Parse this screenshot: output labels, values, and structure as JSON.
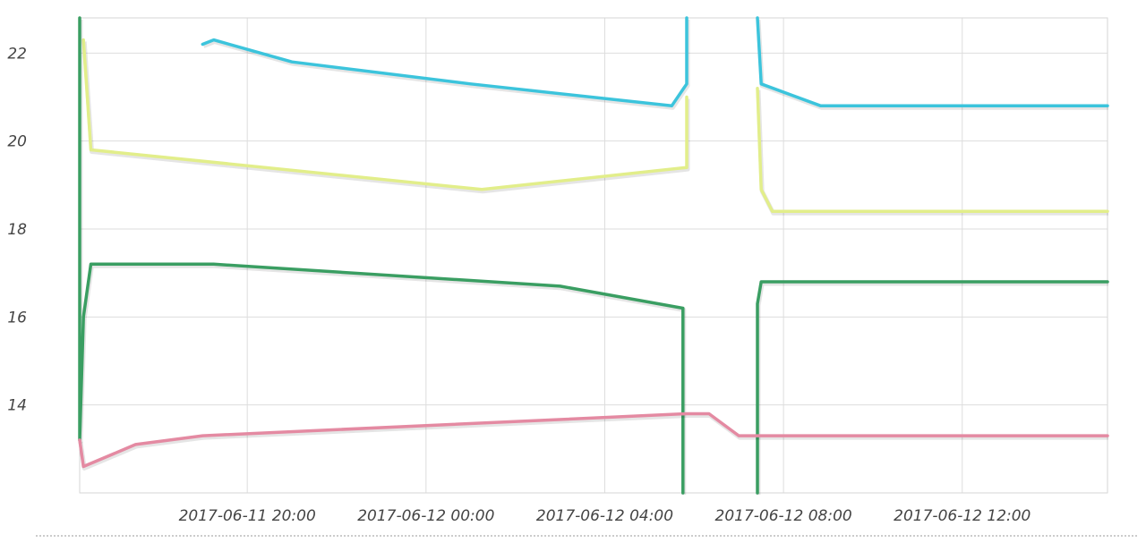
{
  "chart_data": {
    "type": "line",
    "x_axis_type": "datetime",
    "xlim": [
      "2017-06-11 16:15",
      "2017-06-12 15:15"
    ],
    "ylim": [
      12,
      22.8
    ],
    "y_ticks": [
      22,
      20,
      18,
      16,
      14
    ],
    "y_tick_labels": [
      "22",
      "20",
      "18",
      "16",
      "14"
    ],
    "x_ticks": [
      "2017-06-11 20:00",
      "2017-06-12 00:00",
      "2017-06-12 04:00",
      "2017-06-12 08:00",
      "2017-06-12 12:00"
    ],
    "x_tick_labels": [
      "2017-06-11 20:00",
      "2017-06-12 00:00",
      "2017-06-12 04:00",
      "2017-06-12 08:00",
      "2017-06-12 12:00"
    ],
    "grid": true,
    "legend": false,
    "series": [
      {
        "color": "#3cc4dc",
        "points": [
          [
            "2017-06-11 19:00",
            22.2
          ],
          [
            "2017-06-11 19:15",
            22.3
          ],
          [
            "2017-06-11 21:00",
            21.8
          ],
          [
            "2017-06-12 01:00",
            21.3
          ],
          [
            "2017-06-12 05:30",
            20.8
          ],
          [
            "2017-06-12 05:50",
            21.3
          ],
          [
            "2017-06-12 05:50",
            22.8
          ],
          null,
          [
            "2017-06-12 07:25",
            22.8
          ],
          [
            "2017-06-12 07:30",
            21.3
          ],
          [
            "2017-06-12 08:50",
            20.8
          ],
          [
            "2017-06-12 15:15",
            20.8
          ]
        ]
      },
      {
        "color": "#e2ee8a",
        "points": [
          [
            "2017-06-11 16:20",
            22.3
          ],
          [
            "2017-06-11 16:30",
            19.8
          ],
          [
            "2017-06-12 01:15",
            18.9
          ],
          [
            "2017-06-12 05:50",
            19.4
          ],
          [
            "2017-06-12 05:50",
            21.0
          ],
          null,
          [
            "2017-06-12 07:25",
            21.2
          ],
          [
            "2017-06-12 07:30",
            18.9
          ],
          [
            "2017-06-12 07:45",
            18.4
          ],
          [
            "2017-06-12 15:15",
            18.4
          ]
        ]
      },
      {
        "color": "#3a9e62",
        "points": [
          [
            "2017-06-11 16:15",
            22.8
          ],
          [
            "2017-06-11 16:15",
            13.2
          ],
          [
            "2017-06-11 16:20",
            16.0
          ],
          [
            "2017-06-11 16:30",
            17.2
          ],
          [
            "2017-06-11 19:15",
            17.2
          ],
          [
            "2017-06-12 03:00",
            16.7
          ],
          [
            "2017-06-12 05:45",
            16.2
          ],
          [
            "2017-06-12 05:45",
            12.0
          ],
          null,
          [
            "2017-06-12 07:25",
            12.0
          ],
          [
            "2017-06-12 07:25",
            16.3
          ],
          [
            "2017-06-12 07:30",
            16.8
          ],
          [
            "2017-06-12 15:15",
            16.8
          ]
        ]
      },
      {
        "color": "#e48aa2",
        "points": [
          [
            "2017-06-11 16:15",
            13.2
          ],
          [
            "2017-06-11 16:20",
            12.6
          ],
          [
            "2017-06-11 17:30",
            13.1
          ],
          [
            "2017-06-11 19:00",
            13.3
          ],
          [
            "2017-06-12 05:50",
            13.8
          ],
          [
            "2017-06-12 06:20",
            13.8
          ],
          [
            "2017-06-12 07:00",
            13.3
          ],
          [
            "2017-06-12 15:15",
            13.3
          ]
        ]
      }
    ]
  }
}
